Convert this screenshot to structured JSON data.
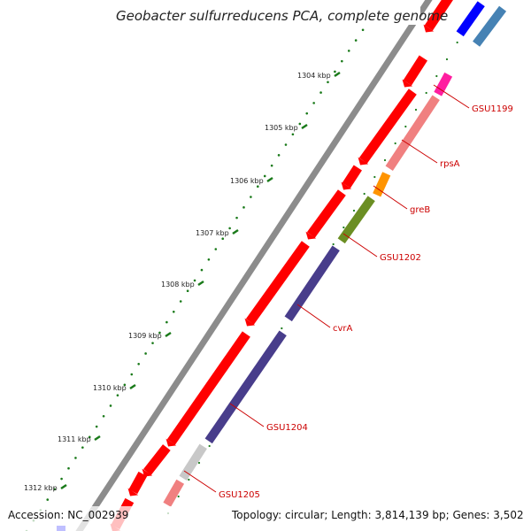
{
  "title": "Geobacter sulfurreducens PCA, complete genome",
  "footer": {
    "accession": "Accession: NC_002939",
    "summary": "Topology: circular; Length: 3,814,139 bp; Genes: 3,502"
  },
  "ticks": [
    "1304 kbp",
    "1305 kbp",
    "1306 kbp",
    "1307 kbp",
    "1308 kbp",
    "1309 kbp",
    "1310 kbp",
    "1311 kbp",
    "1312 kbp"
  ],
  "genes": [
    "GSU1199",
    "rpsA",
    "greB",
    "GSU1202",
    "cvrA",
    "GSU1204",
    "GSU1205"
  ],
  "colors": {
    "backbone": "#8c8c8c",
    "tick": "#1a7a1a",
    "forward_cds": "#ff0000",
    "label": "#cc0000",
    "GSU1199": "#ff1ea0",
    "rpsA": "#f08080",
    "greB": "#ff9400",
    "GSU1202": "#6b8e23",
    "cvrA": "#483d8b",
    "GSU1204": "#483d8b",
    "GSU1205_a": "#c8c8c8",
    "GSU1205_b": "#f08080",
    "top_blue": "#0000ff",
    "top_steel": "#4682b4"
  }
}
